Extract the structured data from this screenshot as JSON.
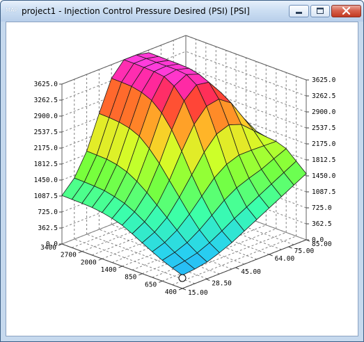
{
  "window": {
    "app_icon_text": "MAP",
    "title": "project1 - Injection Control Pressure Desired (PSI) [PSI]",
    "minimize_icon": "minimize-icon",
    "maximize_icon": "maximize-icon",
    "close_icon": "close-icon"
  },
  "colors": {
    "frame": "#c6d9ee",
    "grid": "#808080",
    "mesh": "#1a1a1a"
  },
  "chart_data": {
    "type": "surface3d",
    "z_ticks": [
      "0.0",
      "362.5",
      "725.0",
      "1087.5",
      "1450.0",
      "1812.5",
      "2175.0",
      "2537.5",
      "2900.0",
      "3262.5",
      "3625.0"
    ],
    "zlim": [
      0,
      3625
    ],
    "rpm_ticks": [
      "400",
      "650",
      "850",
      "1400",
      "2000",
      "2700",
      "3400"
    ],
    "load_ticks": [
      "15.00",
      "28.50",
      "45.00",
      "64.00",
      "75.00",
      "85.00"
    ],
    "rpm_axis": [
      400,
      525,
      650,
      750,
      850,
      1125,
      1400,
      1700,
      2000,
      2350,
      2700,
      3050,
      3400
    ],
    "load_axis": [
      15,
      21.75,
      28.5,
      36.75,
      45,
      54.5,
      64,
      69.5,
      75,
      80,
      85
    ],
    "z": [
      [
        300,
        330,
        380,
        480,
        600,
        750,
        900,
        1050,
        1200,
        1350,
        1500
      ],
      [
        380,
        430,
        500,
        620,
        780,
        950,
        1100,
        1250,
        1400,
        1550,
        1700
      ],
      [
        470,
        540,
        650,
        830,
        1050,
        1280,
        1450,
        1560,
        1650,
        1780,
        1900
      ],
      [
        580,
        680,
        850,
        1100,
        1400,
        1700,
        1900,
        2000,
        2000,
        1990,
        1980
      ],
      [
        700,
        830,
        1050,
        1400,
        1800,
        2200,
        2500,
        2600,
        2500,
        2250,
        2000
      ],
      [
        820,
        980,
        1250,
        1700,
        2250,
        2750,
        3050,
        3100,
        2900,
        2450,
        2050
      ],
      [
        930,
        1120,
        1450,
        2000,
        2650,
        3200,
        3450,
        3400,
        3050,
        2550,
        2100
      ],
      [
        1000,
        1230,
        1620,
        2250,
        2950,
        3450,
        3600,
        3500,
        3150,
        2600,
        2150
      ],
      [
        1050,
        1300,
        1750,
        2450,
        3150,
        3580,
        3625,
        3550,
        3200,
        2650,
        2180
      ],
      [
        1080,
        1350,
        1830,
        2550,
        3250,
        3610,
        3625,
        3560,
        3220,
        2670,
        2190
      ],
      [
        1090,
        1370,
        1870,
        2600,
        3300,
        3620,
        3625,
        3560,
        3230,
        2680,
        2200
      ],
      [
        1095,
        1380,
        1880,
        2620,
        3310,
        3625,
        3625,
        3565,
        3230,
        2680,
        2200
      ],
      [
        1100,
        1385,
        1885,
        2625,
        3315,
        3625,
        3625,
        3565,
        3235,
        2680,
        2200
      ]
    ]
  }
}
